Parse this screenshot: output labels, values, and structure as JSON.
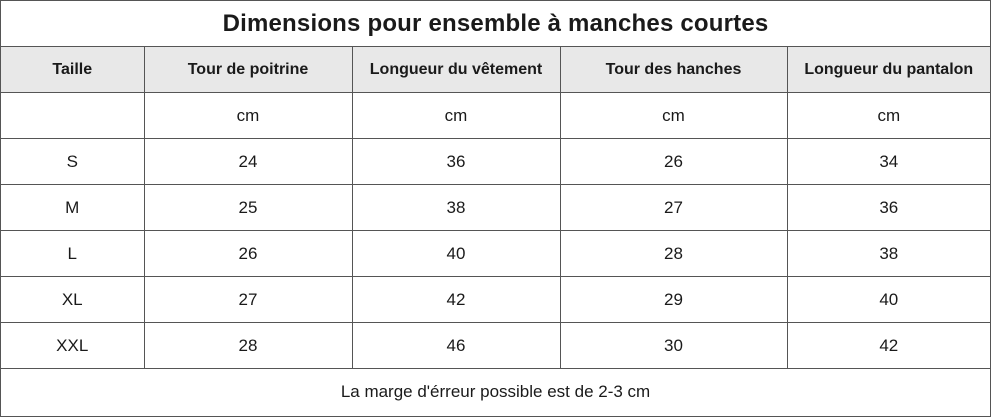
{
  "title": "Dimensions pour ensemble à manches courtes",
  "headers": [
    "Taille",
    "Tour de poitrine",
    "Longueur du vêtement",
    "Tour des hanches",
    "Longueur du pantalon"
  ],
  "rows": [
    [
      "",
      "cm",
      "cm",
      "cm",
      "cm"
    ],
    [
      "S",
      "24",
      "36",
      "26",
      "34"
    ],
    [
      "M",
      "25",
      "38",
      "27",
      "36"
    ],
    [
      "L",
      "26",
      "40",
      "28",
      "38"
    ],
    [
      "XL",
      "27",
      "42",
      "29",
      "40"
    ],
    [
      "XXL",
      "28",
      "46",
      "30",
      "42"
    ]
  ],
  "note": "La marge d'érreur possible est de 2-3 cm",
  "colors": {
    "header_background": "#e8e8e8",
    "border": "#555555",
    "text": "#1a1a1a"
  }
}
